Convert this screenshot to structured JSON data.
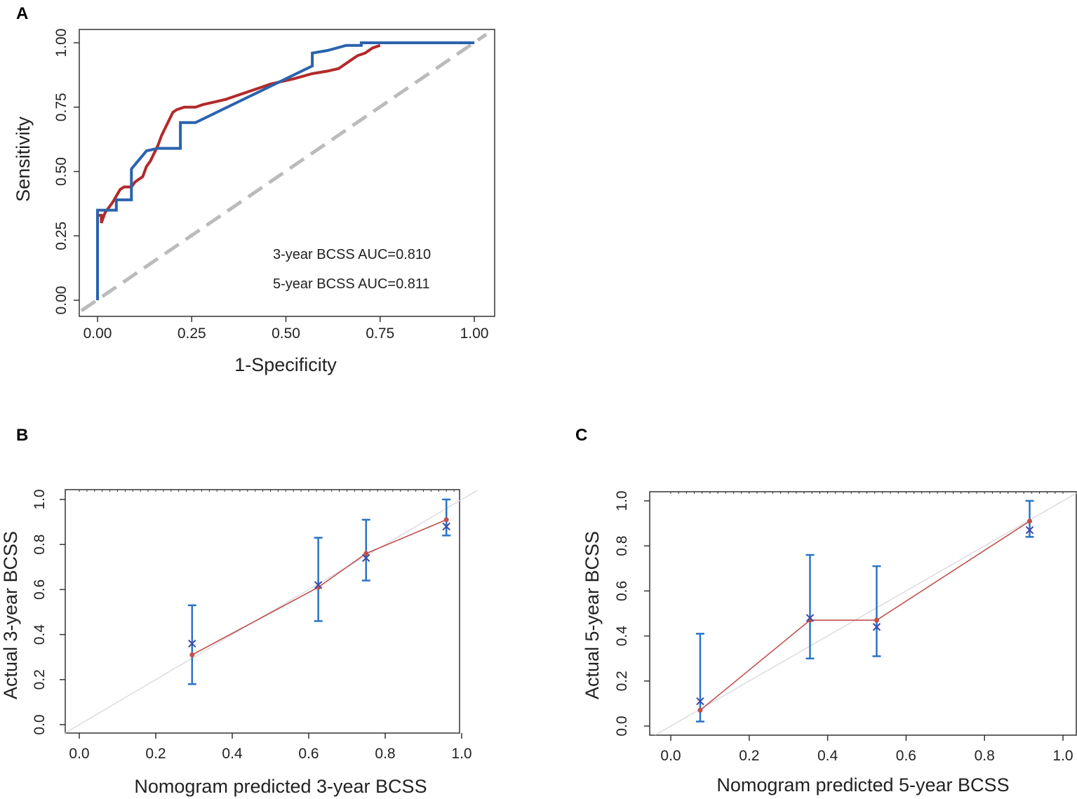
{
  "chart_data": [
    {
      "panel": "A",
      "type": "line",
      "xlabel": "1-Specificity",
      "ylabel": "Sensitivity",
      "xlim": [
        0,
        1
      ],
      "ylim": [
        0,
        1
      ],
      "xticks": [
        "0.00",
        "0.25",
        "0.50",
        "0.75",
        "1.00"
      ],
      "yticks": [
        "0.00",
        "0.25",
        "0.50",
        "0.75",
        "1.00"
      ],
      "annotations": [
        "3-year BCSS AUC=0.810",
        "5-year BCSS AUC=0.811"
      ],
      "diagonal": {
        "style": "dashed",
        "color": "#bbbbbb"
      },
      "series": [
        {
          "name": "3-year BCSS",
          "color": "#b22a2a",
          "x": [
            0.0,
            0.0,
            0.01,
            0.01,
            0.02,
            0.04,
            0.06,
            0.07,
            0.09,
            0.1,
            0.12,
            0.13,
            0.14,
            0.16,
            0.17,
            0.19,
            0.2,
            0.21,
            0.23,
            0.26,
            0.28,
            0.31,
            0.34,
            0.38,
            0.42,
            0.46,
            0.52,
            0.57,
            0.61,
            0.64,
            0.65,
            0.67,
            0.69,
            0.71,
            0.73,
            0.75
          ],
          "y": [
            0.0,
            0.33,
            0.33,
            0.3,
            0.34,
            0.38,
            0.43,
            0.44,
            0.44,
            0.46,
            0.48,
            0.52,
            0.54,
            0.6,
            0.64,
            0.7,
            0.73,
            0.74,
            0.75,
            0.75,
            0.76,
            0.77,
            0.78,
            0.8,
            0.82,
            0.84,
            0.86,
            0.88,
            0.89,
            0.9,
            0.91,
            0.93,
            0.95,
            0.96,
            0.98,
            0.99
          ]
        },
        {
          "name": "5-year BCSS",
          "color": "#2a63ad",
          "x": [
            0.0,
            0.0,
            0.05,
            0.05,
            0.09,
            0.09,
            0.13,
            0.16,
            0.22,
            0.22,
            0.26,
            0.57,
            0.57,
            0.61,
            0.66,
            0.7,
            0.7,
            1.0
          ],
          "y": [
            0.0,
            0.35,
            0.35,
            0.39,
            0.39,
            0.51,
            0.58,
            0.59,
            0.59,
            0.69,
            0.69,
            0.91,
            0.96,
            0.97,
            0.99,
            0.99,
            1.0,
            1.0
          ]
        }
      ]
    },
    {
      "panel": "B",
      "type": "scatter",
      "xlabel": "Nomogram predicted 3-year BCSS",
      "ylabel": "Actual 3-year BCSS",
      "xlim": [
        0,
        1
      ],
      "ylim": [
        0,
        1
      ],
      "xticks": [
        "0.0",
        "0.2",
        "0.4",
        "0.6",
        "0.8",
        "1.0"
      ],
      "yticks": [
        "0.0",
        "0.2",
        "0.4",
        "0.6",
        "0.8",
        "1.0"
      ],
      "points": [
        {
          "x": 0.295,
          "observed": 0.31,
          "corrected": 0.36,
          "ci": [
            0.18,
            0.53
          ]
        },
        {
          "x": 0.625,
          "observed": 0.61,
          "corrected": 0.62,
          "ci": [
            0.46,
            0.83
          ]
        },
        {
          "x": 0.75,
          "observed": 0.76,
          "corrected": 0.74,
          "ci": [
            0.64,
            0.91
          ]
        },
        {
          "x": 0.96,
          "observed": 0.91,
          "corrected": 0.88,
          "ci": [
            0.84,
            1.0
          ]
        }
      ]
    },
    {
      "panel": "C",
      "type": "scatter",
      "xlabel": "Nomogram predicted 5-year BCSS",
      "ylabel": "Actual 5-year BCSS",
      "xlim": [
        0,
        1
      ],
      "ylim": [
        0,
        1
      ],
      "xticks": [
        "0.0",
        "0.2",
        "0.4",
        "0.6",
        "0.8",
        "1.0"
      ],
      "yticks": [
        "0.0",
        "0.2",
        "0.4",
        "0.6",
        "0.8",
        "1.0"
      ],
      "points": [
        {
          "x": 0.075,
          "observed": 0.07,
          "corrected": 0.11,
          "ci": [
            0.02,
            0.41
          ]
        },
        {
          "x": 0.355,
          "observed": 0.47,
          "corrected": 0.48,
          "ci": [
            0.3,
            0.76
          ]
        },
        {
          "x": 0.525,
          "observed": 0.47,
          "corrected": 0.44,
          "ci": [
            0.31,
            0.71
          ]
        },
        {
          "x": 0.915,
          "observed": 0.91,
          "corrected": 0.87,
          "ci": [
            0.84,
            1.0
          ]
        }
      ]
    }
  ],
  "colors": {
    "red": "#b22a2a",
    "blue": "#2a63ad",
    "diagonal": "#bbbbbb",
    "calibration_line": "#c0504d",
    "error_bar": "#2a73c4",
    "x_marker": "#3a4aa8",
    "dot_marker": "#c0504d"
  }
}
